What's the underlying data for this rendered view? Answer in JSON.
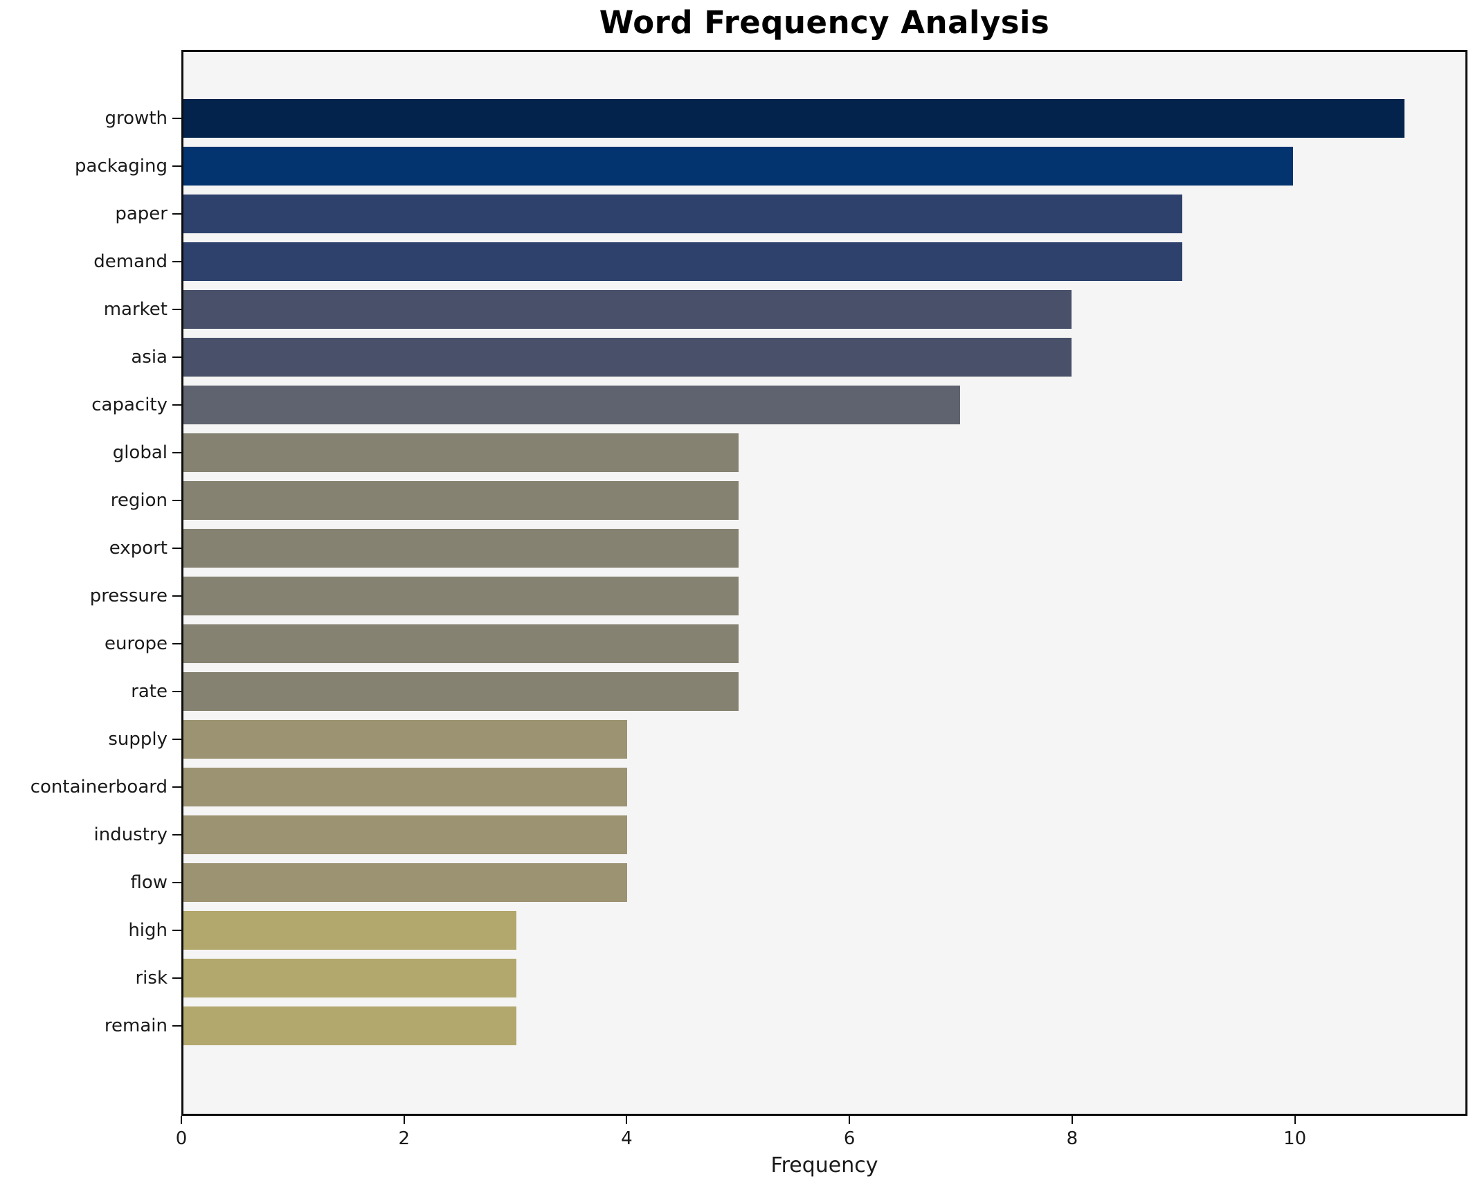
{
  "chart_data": {
    "type": "bar",
    "orientation": "horizontal",
    "title": "Word Frequency Analysis",
    "xlabel": "Frequency",
    "ylabel": "",
    "categories": [
      "growth",
      "packaging",
      "paper",
      "demand",
      "market",
      "asia",
      "capacity",
      "global",
      "region",
      "export",
      "pressure",
      "europe",
      "rate",
      "supply",
      "containerboard",
      "industry",
      "flow",
      "high",
      "risk",
      "remain"
    ],
    "values": [
      11,
      10,
      9,
      9,
      8,
      8,
      7,
      5,
      5,
      5,
      5,
      5,
      5,
      4,
      4,
      4,
      4,
      3,
      3,
      3
    ],
    "bar_colors": [
      "#03234c",
      "#043470",
      "#2d416c",
      "#2d416c",
      "#485169",
      "#485169",
      "#5e636f",
      "#858271",
      "#858271",
      "#858271",
      "#858271",
      "#858271",
      "#858271",
      "#9c9372",
      "#9c9372",
      "#9c9372",
      "#9c9372",
      "#b2a76c",
      "#b2a76c",
      "#b2a76c"
    ],
    "xlim": [
      0,
      11.55
    ],
    "x_ticks": [
      0,
      2,
      4,
      6,
      8,
      10
    ],
    "grid": false,
    "legend_position": "none",
    "plot_bg": "#f5f5f5",
    "fig_bg": "#ffffff",
    "spine_color": "#0d0d0d"
  }
}
